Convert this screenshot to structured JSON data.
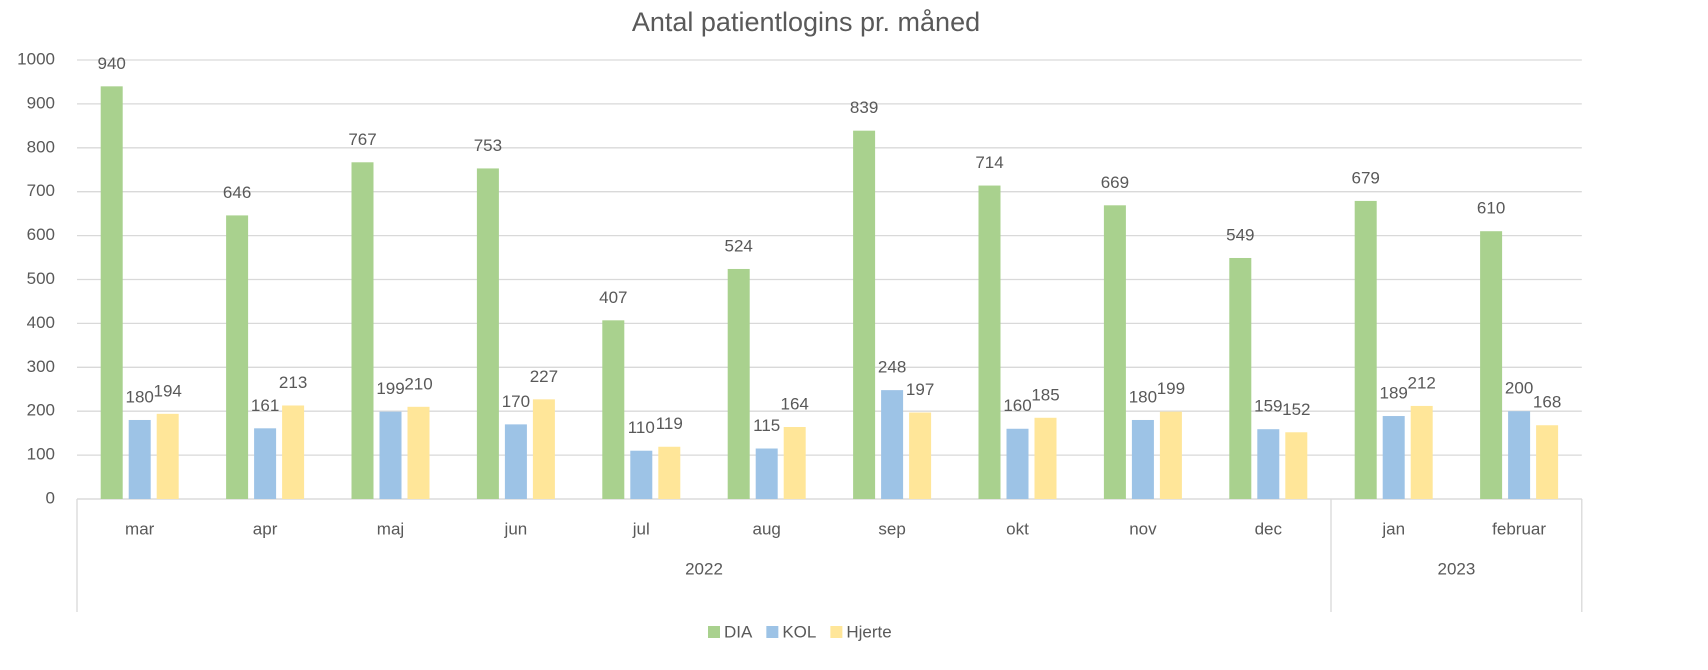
{
  "chart_data": {
    "type": "bar",
    "title": "Antal patientlogins pr. måned",
    "categories": [
      "mar",
      "apr",
      "maj",
      "jun",
      "jul",
      "aug",
      "sep",
      "okt",
      "nov",
      "dec",
      "jan",
      "februar"
    ],
    "x_groups": [
      {
        "name": "2022",
        "count": 10
      },
      {
        "name": "2023",
        "count": 2
      }
    ],
    "series": [
      {
        "name": "DIA",
        "color": "#a9d18e",
        "values": [
          940,
          646,
          767,
          753,
          407,
          524,
          839,
          714,
          669,
          549,
          679,
          610
        ]
      },
      {
        "name": "KOL",
        "color": "#9dc3e6",
        "values": [
          180,
          161,
          199,
          170,
          110,
          115,
          248,
          160,
          180,
          159,
          189,
          200
        ]
      },
      {
        "name": "Hjerte",
        "color": "#ffe699",
        "values": [
          194,
          213,
          210,
          227,
          119,
          164,
          197,
          185,
          199,
          152,
          212,
          168
        ]
      }
    ],
    "ylim": [
      0,
      1000
    ],
    "yticks": [
      0,
      100,
      200,
      300,
      400,
      500,
      600,
      700,
      800,
      900,
      1000
    ],
    "grid": true,
    "legend": "bottom"
  }
}
